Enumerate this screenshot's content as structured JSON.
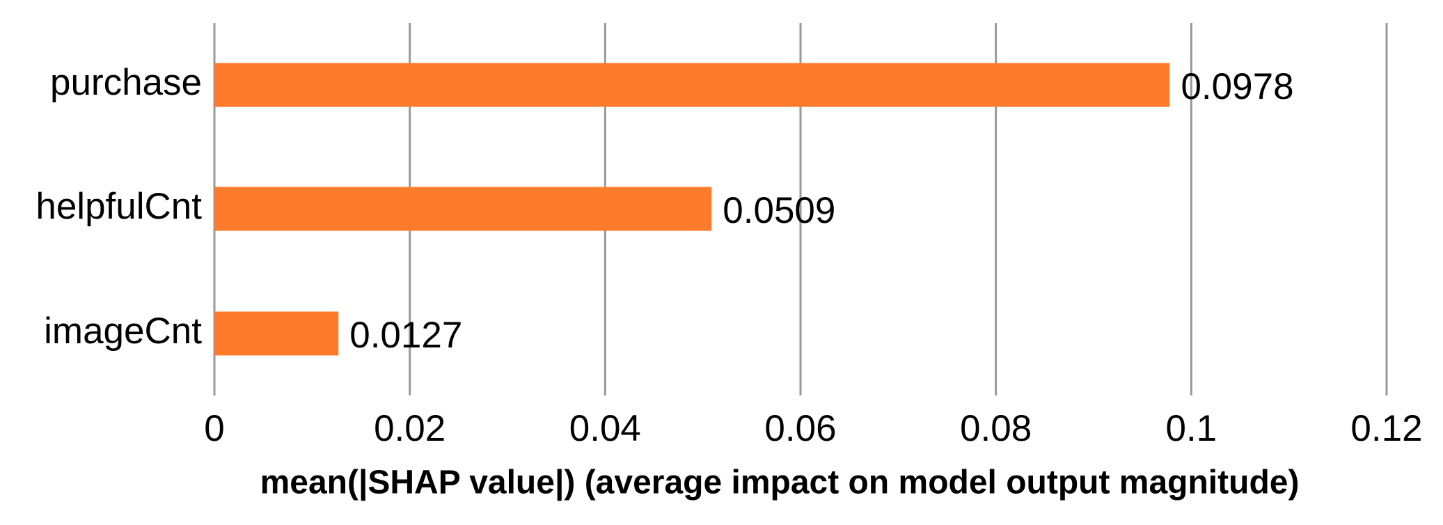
{
  "chart_data": {
    "type": "hbar",
    "categories": [
      "purchase",
      "helpfulCnt",
      "imageCnt"
    ],
    "values": [
      0.0978,
      0.0509,
      0.0127
    ],
    "color": "#fe7b2c",
    "xlabel": "mean(|SHAP value|) (average impact on model output magnitude)",
    "xlim": [
      0,
      0.12
    ],
    "xticks": [
      0,
      0.02,
      0.04,
      0.06,
      0.08,
      0.1,
      0.12
    ],
    "grid": true
  }
}
